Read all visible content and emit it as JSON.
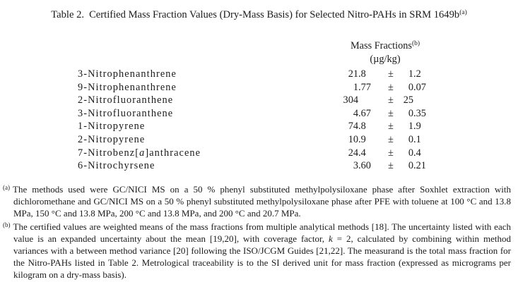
{
  "title": {
    "label": "Table 2.",
    "text": "Certified Mass Fraction Values (Dry-Mass Basis) for Selected Nitro-PAHs in SRM 1649b",
    "superscript": "(a)"
  },
  "table": {
    "header": {
      "line1": "Mass Fractions",
      "line1_sup": "(b)",
      "line2": "(µg/kg)"
    },
    "plus_minus": "±",
    "rows": [
      {
        "name": "3-Nitrophenanthrene",
        "value": "21.8",
        "uncertainty": "1.2"
      },
      {
        "name": "9-Nitrophenanthrene",
        "value": "1.77",
        "uncertainty": "0.07"
      },
      {
        "name": "2-Nitrofluoranthene",
        "value": "304",
        "uncertainty": "25"
      },
      {
        "name": "3-Nitrofluoranthene",
        "value": "4.67",
        "uncertainty": "0.35"
      },
      {
        "name": "1-Nitropyrene",
        "value": "74.8",
        "uncertainty": "1.9"
      },
      {
        "name": "2-Nitropyrene",
        "value": "10.9",
        "uncertainty": "0.1"
      },
      {
        "name": "7-Nitrobenz[a]anthracene",
        "value": "24.4",
        "uncertainty": "0.4"
      },
      {
        "name": "6-Nitrochyrsene",
        "value": "3.60",
        "uncertainty": "0.21"
      }
    ]
  },
  "footnotes": [
    {
      "marker": "(a)",
      "segments": [
        {
          "text": "The methods used were GC/NICI MS on a 50 % phenyl substituted methylpolysiloxane phase after Soxhlet extraction with dichloromethane and GC/NICI MS on a 50 % phenyl substituted methylpolysiloxane phase after PFE with toluene at 100 °C and 13.8 MPa, 150 °C and 13.8 MPa, 200 °C and 13.8 MPa, and 200 °C and 20.7 MPa.",
          "italic": false
        }
      ]
    },
    {
      "marker": "(b)",
      "segments": [
        {
          "text": "The certified values are weighted means of the mass fractions from multiple analytical methods [18].  The uncertainty listed with each value is an expanded uncertainty about the mean [19,20], with coverage factor, ",
          "italic": false
        },
        {
          "text": "k",
          "italic": true
        },
        {
          "text": " = 2, calculated by combining within method variances with a between method variance [20] following the ISO/JCGM Guides [21,22].  The measurand is the total mass fraction for the Nitro-PAHs listed in Table 2.  Metrological traceability is to the SI derived unit for mass fraction (expressed as micrograms per kilogram on a dry-mass basis).",
          "italic": false
        }
      ]
    }
  ]
}
